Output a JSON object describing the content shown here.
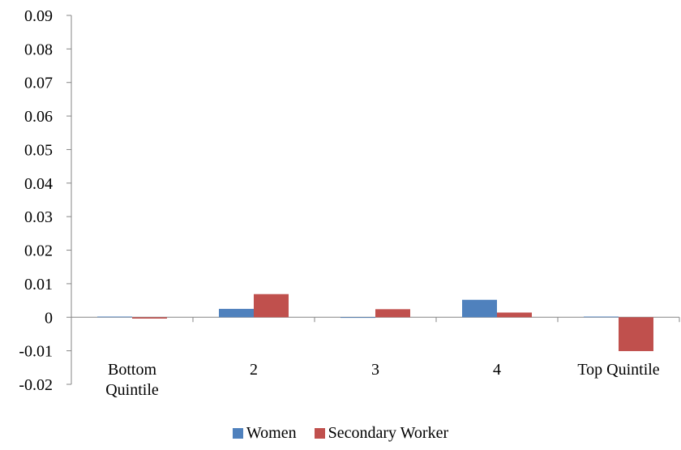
{
  "chart_data": {
    "type": "bar",
    "categories": [
      "Bottom Quintile",
      "2",
      "3",
      "4",
      "Top Quintile"
    ],
    "category_lines": [
      [
        "Bottom",
        "Quintile"
      ],
      [
        "2"
      ],
      [
        "3"
      ],
      [
        "4"
      ],
      [
        "Top Quintile"
      ]
    ],
    "series": [
      {
        "name": "Women",
        "color": "#4f81bd",
        "values": [
          0.0002,
          0.0025,
          -0.0002,
          0.0052,
          0.0002
        ]
      },
      {
        "name": "Secondary Worker",
        "color": "#c0504d",
        "values": [
          -0.0004,
          0.0069,
          0.0024,
          0.0014,
          -0.0101
        ]
      }
    ],
    "y_ticks": [
      "0.09",
      "0.08",
      "0.07",
      "0.06",
      "0.05",
      "0.04",
      "0.03",
      "0.02",
      "0.01",
      "0",
      "-0.01",
      "-0.02"
    ],
    "ylim": [
      -0.02,
      0.09
    ],
    "title": "",
    "xlabel": "",
    "ylabel": "",
    "grid": false,
    "legend_position": "bottom"
  }
}
